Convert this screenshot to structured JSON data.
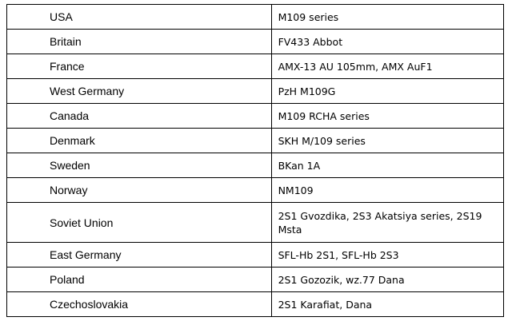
{
  "table": {
    "rows": [
      {
        "country": "USA",
        "vehicles": "M109 series"
      },
      {
        "country": "Britain",
        "vehicles": "FV433 Abbot"
      },
      {
        "country": "France",
        "vehicles": "AMX-13 AU 105mm, AMX AuF1"
      },
      {
        "country": "West Germany",
        "vehicles": "PzH M109G"
      },
      {
        "country": "Canada",
        "vehicles": "M109 RCHA series"
      },
      {
        "country": "Denmark",
        "vehicles": "SKH M/109 series"
      },
      {
        "country": "Sweden",
        "vehicles": "BKan 1A"
      },
      {
        "country": "Norway",
        "vehicles": "NM109"
      },
      {
        "country": "Soviet Union",
        "vehicles": "2S1 Gvozdika, 2S3 Akatsiya series, 2S19 Msta"
      },
      {
        "country": "East Germany",
        "vehicles": "SFL-Hb 2S1, SFL-Hb 2S3"
      },
      {
        "country": "Poland",
        "vehicles": "2S1 Gozozik, wz.77 Dana"
      },
      {
        "country": "Czechoslovakia",
        "vehicles": "2S1 Karafiat, Dana"
      }
    ]
  }
}
